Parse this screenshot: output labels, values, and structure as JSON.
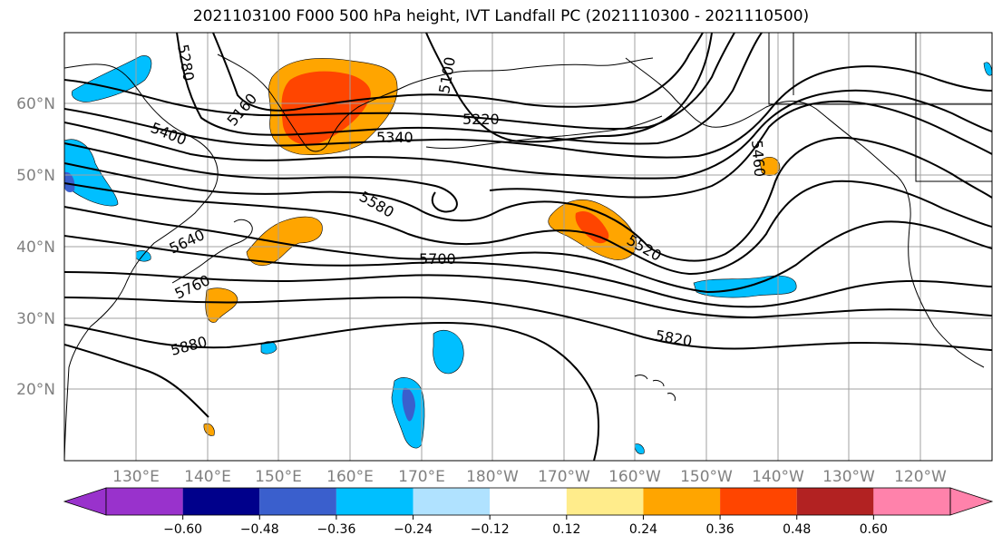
{
  "title": "2021103100 F000 500 hPa height, IVT Landfall PC (2021110300 - 2021110500)",
  "latitude_labels": [
    "60°N",
    "50°N",
    "40°N",
    "30°N",
    "20°N"
  ],
  "longitude_labels": [
    "130°E",
    "140°E",
    "150°E",
    "160°E",
    "170°E",
    "180°W",
    "170°W",
    "160°W",
    "150°W",
    "140°W",
    "130°W",
    "120°W"
  ],
  "contour_labels": [
    "5280",
    "5100",
    "5160",
    "5400",
    "5220",
    "5340",
    "5460",
    "5580",
    "5520",
    "5640",
    "5700",
    "5760",
    "5880",
    "5820"
  ],
  "colorbar": {
    "tick_labels": [
      "−0.60",
      "−0.48",
      "−0.36",
      "−0.24",
      "−0.12",
      "0.12",
      "0.24",
      "0.36",
      "0.48",
      "0.60"
    ],
    "bin_colors": [
      "#9932cc",
      "#00008b",
      "#3a5fcd",
      "#00bfff",
      "#b0e2ff",
      "#ffffff",
      "#ffec8b",
      "#ffa500",
      "#ff4500",
      "#b22222",
      "#ff82ab"
    ]
  },
  "colors": {
    "contour": "#000000",
    "coast": "#000000",
    "grid": "#a0a0a0"
  }
}
